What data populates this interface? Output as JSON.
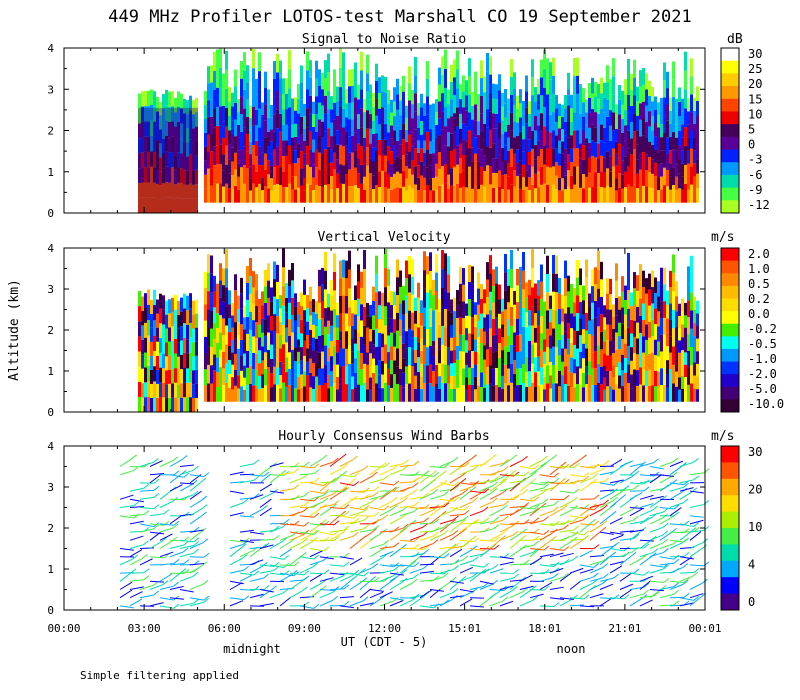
{
  "title": "449 MHz Profiler LOTOS-test Marshall CO 19 September 2021",
  "ylabel": "Altitude (km)",
  "xlabel": "UT  (CDT - 5)",
  "local_markers": [
    "midnight",
    "noon"
  ],
  "footer": "Simple filtering applied",
  "x_ticks": [
    "00:00",
    "03:00",
    "06:00",
    "09:00",
    "12:00",
    "15:01",
    "18:01",
    "21:01",
    "00:01"
  ],
  "chart_data": [
    {
      "type": "heatmap",
      "title": "Signal to Noise Ratio",
      "units": "dB",
      "ylim": [
        0,
        4
      ],
      "y_ticks": [
        "0",
        "1",
        "2",
        "3",
        "4"
      ],
      "colorbar_labels": [
        "30",
        "25",
        "20",
        "15",
        "10",
        "5",
        "0",
        "-3",
        "-6",
        "-9",
        "-12"
      ],
      "colorbar_colors": [
        "#ffffff",
        "#ffff00",
        "#ffcc00",
        "#ff9900",
        "#ff4400",
        "#ee0000",
        "#44005a",
        "#5a0099",
        "#0022ff",
        "#0099ff",
        "#00ddaa",
        "#44ff44",
        "#aaff22"
      ]
    },
    {
      "type": "heatmap",
      "title": "Vertical Velocity",
      "units": "m/s",
      "ylim": [
        0,
        4
      ],
      "y_ticks": [
        "0",
        "1",
        "2",
        "3",
        "4"
      ],
      "colorbar_labels": [
        "2.0",
        "1.0",
        "0.5",
        "0.2",
        "0.0",
        "-0.2",
        "-0.5",
        "-1.0",
        "-2.0",
        "-5.0",
        "-10.0"
      ],
      "colorbar_colors": [
        "#ff0000",
        "#ff5500",
        "#ff8800",
        "#ffbb00",
        "#ffdd00",
        "#ffff00",
        "#44ee00",
        "#00ffee",
        "#0099ff",
        "#0033ff",
        "#2200cc",
        "#440077",
        "#330033"
      ]
    },
    {
      "type": "scatter",
      "title": "Hourly Consensus Wind Barbs",
      "units": "m/s",
      "ylim": [
        0,
        4
      ],
      "y_ticks": [
        "0",
        "1",
        "2",
        "3",
        "4"
      ],
      "colorbar_labels": [
        "30",
        "20",
        "10",
        "4",
        "0"
      ],
      "colorbar_colors": [
        "#ff0000",
        "#ff5500",
        "#ffaa00",
        "#ffdd00",
        "#aaee00",
        "#44ee44",
        "#00ddaa",
        "#00aaff",
        "#0000ff",
        "#440088"
      ]
    }
  ]
}
